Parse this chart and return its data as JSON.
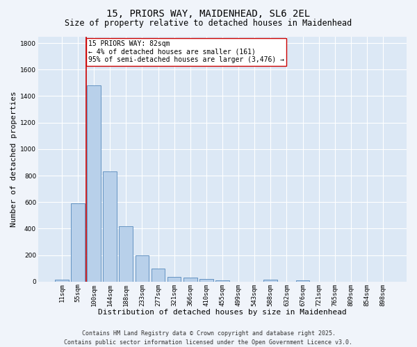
{
  "title_line1": "15, PRIORS WAY, MAIDENHEAD, SL6 2EL",
  "title_line2": "Size of property relative to detached houses in Maidenhead",
  "xlabel": "Distribution of detached houses by size in Maidenhead",
  "ylabel": "Number of detached properties",
  "bar_labels": [
    "11sqm",
    "55sqm",
    "100sqm",
    "144sqm",
    "188sqm",
    "233sqm",
    "277sqm",
    "321sqm",
    "366sqm",
    "410sqm",
    "455sqm",
    "499sqm",
    "543sqm",
    "588sqm",
    "632sqm",
    "676sqm",
    "721sqm",
    "765sqm",
    "809sqm",
    "854sqm",
    "898sqm"
  ],
  "bar_values": [
    15,
    590,
    1480,
    830,
    420,
    200,
    100,
    38,
    30,
    20,
    8,
    0,
    0,
    15,
    0,
    10,
    0,
    0,
    0,
    0,
    0
  ],
  "bar_color": "#b8d0ea",
  "bar_edgecolor": "#5588bb",
  "background_color": "#e8f0f8",
  "plot_bg_color": "#dce8f5",
  "grid_color": "#ffffff",
  "vline_color": "#cc0000",
  "vline_x": 1.5,
  "annotation_text": "15 PRIORS WAY: 82sqm\n← 4% of detached houses are smaller (161)\n95% of semi-detached houses are larger (3,476) →",
  "annotation_box_edgecolor": "#cc0000",
  "annotation_box_facecolor": "#ffffff",
  "ylim": [
    0,
    1850
  ],
  "yticks": [
    0,
    200,
    400,
    600,
    800,
    1000,
    1200,
    1400,
    1600,
    1800
  ],
  "footer_line1": "Contains HM Land Registry data © Crown copyright and database right 2025.",
  "footer_line2": "Contains public sector information licensed under the Open Government Licence v3.0.",
  "title_fontsize": 10,
  "subtitle_fontsize": 8.5,
  "axis_label_fontsize": 8,
  "tick_fontsize": 6.5,
  "annotation_fontsize": 7,
  "footer_fontsize": 6
}
